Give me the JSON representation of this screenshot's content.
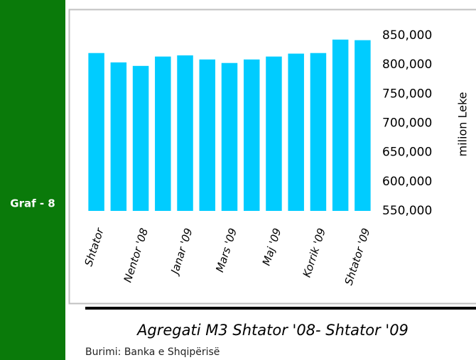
{
  "sidebar_label": "Graf - 8",
  "source": "Burimi: Banka e Shqipërisë",
  "chart_data": {
    "type": "bar",
    "title": "Agregati M3 Shtator '08- Shtator '09",
    "y_axis_label": "milion Leke",
    "categories": [
      "Shtator",
      null,
      "Nentor '08",
      null,
      "Janar '09",
      null,
      "Mars '09",
      null,
      "Maj '09",
      null,
      "Korrik '09",
      null,
      "Shtator '09"
    ],
    "values": [
      820000,
      804000,
      798000,
      814000,
      816000,
      809000,
      803000,
      809000,
      814000,
      819000,
      820000,
      843000,
      842000
    ],
    "color": "#00ccff",
    "ylim": [
      550000,
      850000
    ],
    "yticks": [
      {
        "value": 550000,
        "label": "550,000"
      },
      {
        "value": 600000,
        "label": "600,000"
      },
      {
        "value": 650000,
        "label": "650,000"
      },
      {
        "value": 700000,
        "label": "700,000"
      },
      {
        "value": 750000,
        "label": "750,000"
      },
      {
        "value": 800000,
        "label": "800,000"
      },
      {
        "value": 850000,
        "label": "850,000"
      }
    ],
    "grid": false
  }
}
